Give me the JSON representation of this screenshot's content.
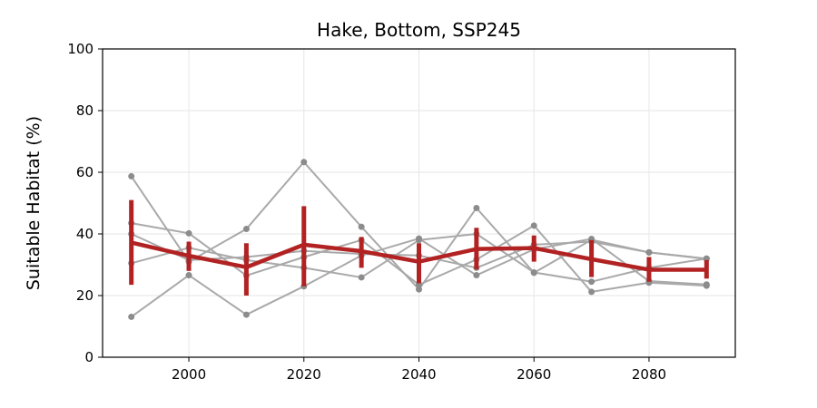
{
  "chart_data": {
    "type": "line",
    "title": "Hake, Bottom, SSP245",
    "xlabel": "",
    "ylabel": "Suitable Habitat (%)",
    "xlim": [
      1985,
      2095
    ],
    "ylim": [
      0,
      100
    ],
    "xticks": [
      2000,
      2020,
      2040,
      2060,
      2080
    ],
    "yticks": [
      0,
      20,
      40,
      60,
      80,
      100
    ],
    "grid": true,
    "x": [
      1990,
      2000,
      2010,
      2020,
      2030,
      2040,
      2050,
      2060,
      2070,
      2080,
      2090
    ],
    "member_color": "#a9a9a9",
    "mean_color": "#b22222",
    "members": [
      {
        "values": [
          58.7,
          31.0,
          41.6,
          63.3,
          42.3,
          22.0,
          48.4,
          27.4,
          38.1,
          34.0,
          31.9
        ]
      },
      {
        "values": [
          43.5,
          40.2,
          26.5,
          32.5,
          38.0,
          23.5,
          31.7,
          42.7,
          21.2,
          24.2,
          23.2
        ]
      },
      {
        "values": [
          13.1,
          26.6,
          13.8,
          23.0,
          33.0,
          38.5,
          26.6,
          35.0,
          38.4,
          24.7,
          23.6
        ]
      },
      {
        "values": [
          30.5,
          35.5,
          31.5,
          29.0,
          25.9,
          38.0,
          40.0,
          27.5,
          24.5,
          29.0,
          32.0
        ]
      },
      {
        "values": [
          40.0,
          31.5,
          32.5,
          34.5,
          33.5,
          33.0,
          29.0,
          36.5,
          37.5,
          34.0,
          32.0
        ]
      }
    ],
    "mean": [
      37.2,
      32.9,
      29.2,
      36.5,
      34.4,
      31.0,
      35.1,
      35.4,
      31.8,
      28.4,
      28.4
    ],
    "error_low": [
      23.5,
      28.0,
      20.0,
      23.0,
      29.0,
      24.0,
      28.5,
      31.0,
      26.0,
      24.5,
      25.5
    ],
    "error_high": [
      51.0,
      37.5,
      37.0,
      49.0,
      39.0,
      37.0,
      42.0,
      39.5,
      38.0,
      32.5,
      31.5
    ]
  }
}
